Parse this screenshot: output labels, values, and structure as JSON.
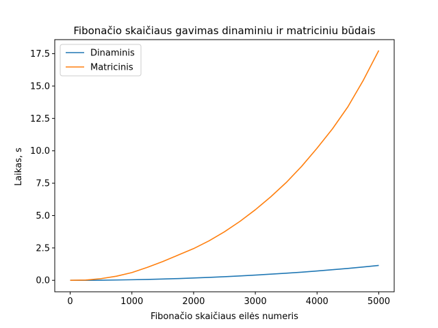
{
  "chart_data": {
    "type": "line",
    "title": "Fibonačio skaičiaus gavimas dinaminiu ir matriciniu būdais",
    "xlabel": "Fibonačio skaičiaus eilės numeris",
    "ylabel": "Laikas, s",
    "xlim": [
      -250,
      5250
    ],
    "ylim": [
      -0.885,
      18.585
    ],
    "x_ticks": [
      0,
      1000,
      2000,
      3000,
      4000,
      5000
    ],
    "x_tick_labels": [
      "0",
      "1000",
      "2000",
      "3000",
      "4000",
      "5000"
    ],
    "y_ticks": [
      0,
      2.5,
      5,
      7.5,
      10,
      12.5,
      15,
      17.5
    ],
    "y_tick_labels": [
      "0.0",
      "2.5",
      "5.0",
      "7.5",
      "10.0",
      "12.5",
      "15.0",
      "17.5"
    ],
    "grid": false,
    "legend_position": "top-left",
    "x": [
      0,
      250,
      500,
      750,
      1000,
      1250,
      1500,
      1750,
      2000,
      2250,
      2500,
      2750,
      3000,
      3250,
      3500,
      3750,
      4000,
      4250,
      4500,
      4750,
      5000
    ],
    "series": [
      {
        "name": "Dinaminis",
        "color": "#1f77b4",
        "values": [
          0,
          0.002,
          0.01,
          0.025,
          0.045,
          0.07,
          0.1,
          0.135,
          0.18,
          0.225,
          0.28,
          0.34,
          0.405,
          0.475,
          0.55,
          0.63,
          0.72,
          0.82,
          0.92,
          1.03,
          1.15
        ]
      },
      {
        "name": "Matricinis",
        "color": "#ff7f0e",
        "values": [
          0,
          0.02,
          0.13,
          0.32,
          0.6,
          1.0,
          1.45,
          1.95,
          2.45,
          3.05,
          3.75,
          4.55,
          5.45,
          6.45,
          7.55,
          8.8,
          10.2,
          11.7,
          13.4,
          15.45,
          17.75
        ]
      }
    ]
  }
}
